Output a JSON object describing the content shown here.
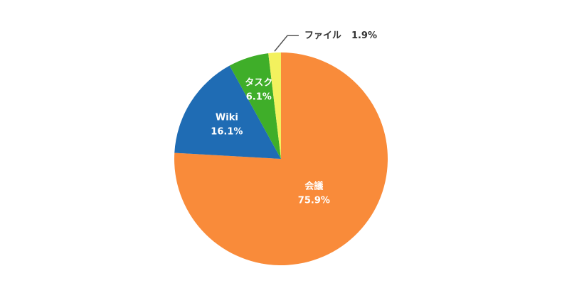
{
  "chart_data": {
    "type": "pie",
    "categories": [
      "会議",
      "Wiki",
      "タスク",
      "ファイル"
    ],
    "values": [
      75.9,
      16.1,
      6.1,
      1.9
    ],
    "value_labels": [
      "75.9%",
      "16.1%",
      "6.1%",
      "1.9%"
    ],
    "colors": [
      "#f98b3a",
      "#1f6cb4",
      "#3fae29",
      "#f3f15e"
    ]
  }
}
